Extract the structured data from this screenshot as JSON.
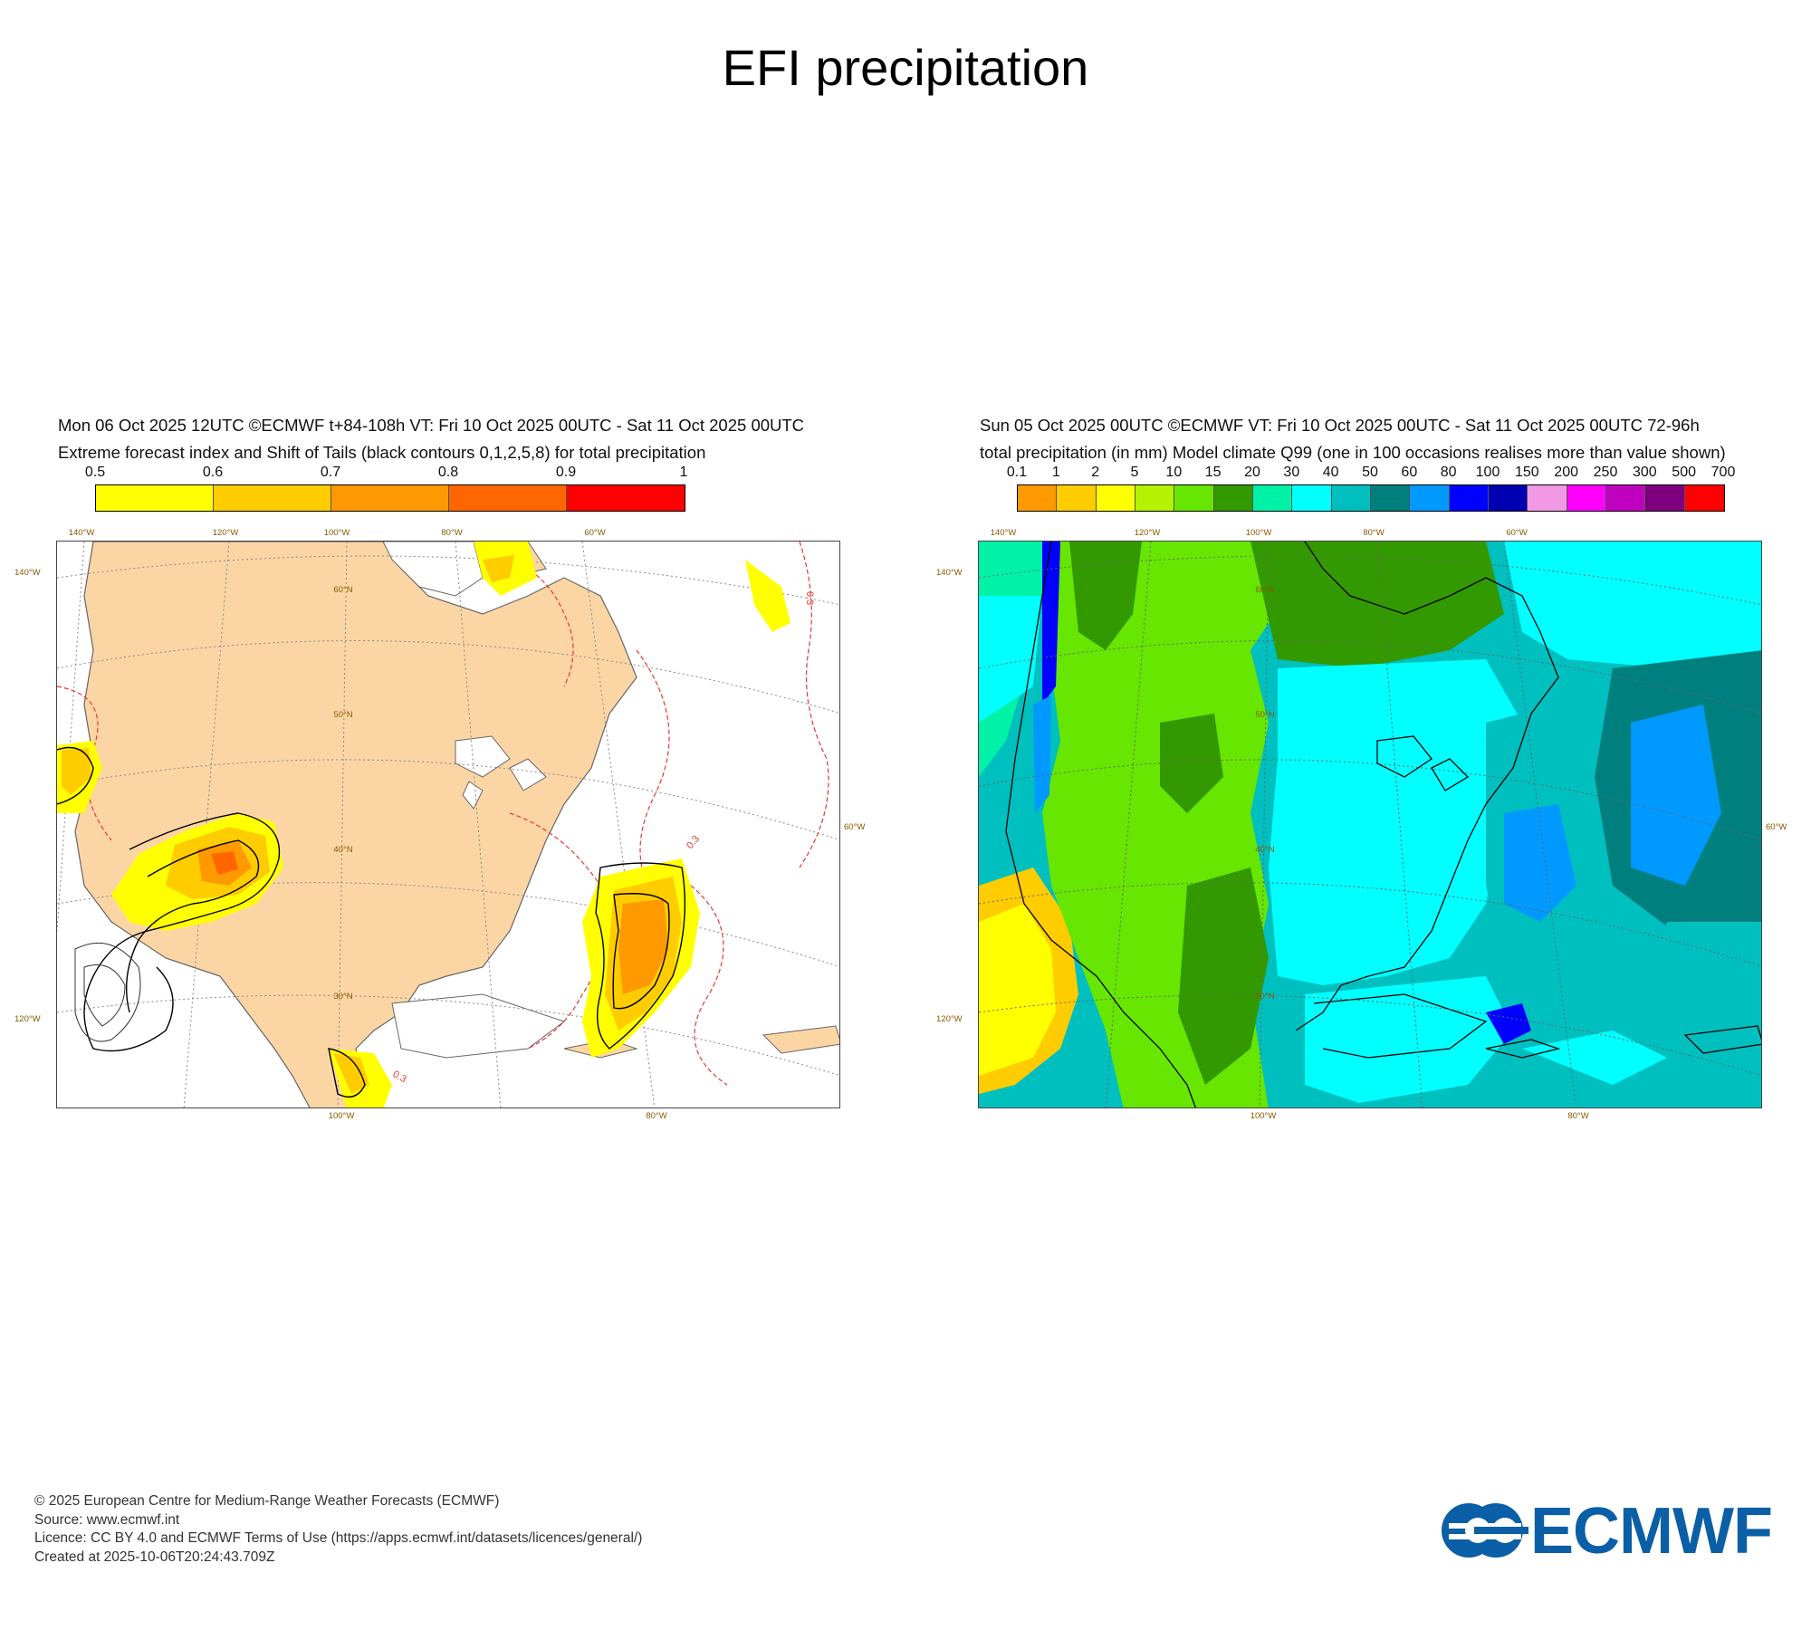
{
  "page": {
    "title": "EFI precipitation"
  },
  "left_panel": {
    "header_line1": "Mon 06 Oct 2025 12UTC ©ECMWF t+84-108h  VT: Fri 10 Oct 2025 00UTC - Sat 11 Oct 2025 00UTC",
    "header_line2": "Extreme forecast index and Shift of Tails (black contours 0,1,2,5,8) for total precipitation",
    "legend": {
      "labels": [
        "0.5",
        "0.6",
        "0.7",
        "0.8",
        "0.9",
        "1"
      ],
      "colors": [
        "#ffff00",
        "#ffcc00",
        "#ff9900",
        "#ff6600",
        "#ff0000"
      ]
    },
    "map": {
      "top_lon_labels": [
        "140°W",
        "120°W",
        "100°W",
        "80°W",
        "60°W"
      ],
      "bottom_lon_labels": [
        "100°W",
        "80°W"
      ],
      "left_lat_labels": [
        "140°W",
        "120°W"
      ],
      "right_labels": [
        "60°W"
      ],
      "lat_labels": [
        "60°N",
        "50°N",
        "40°N",
        "30°N"
      ],
      "contour_label": "0.3",
      "land_color": "#fcd5a5",
      "efi_colors": {
        "low": "#ffff00",
        "mid": "#ffcc00",
        "high": "#ff9900",
        "max": "#ff6600"
      }
    }
  },
  "right_panel": {
    "header_line1": "Sun 05 Oct 2025 00UTC ©ECMWF VT: Fri 10 Oct 2025 00UTC - Sat 11 Oct 2025 00UTC   72-96h",
    "header_line2": "total precipitation (in mm)  Model climate Q99 (one in 100 occasions realises more than value shown)",
    "legend": {
      "labels": [
        "0.1",
        "1",
        "2",
        "5",
        "10",
        "15",
        "20",
        "30",
        "40",
        "50",
        "60",
        "80",
        "100",
        "150",
        "200",
        "250",
        "300",
        "500",
        "700"
      ],
      "colors": [
        "#ff9900",
        "#ffcc00",
        "#ffff00",
        "#b3f200",
        "#66e600",
        "#339900",
        "#00f2a6",
        "#00ffff",
        "#00bfbf",
        "#007f7f",
        "#0099ff",
        "#0000ff",
        "#0000b3",
        "#f299e6",
        "#ff00ff",
        "#bf00bf",
        "#7f007f",
        "#ff0000"
      ]
    },
    "map": {
      "top_lon_labels": [
        "140°W",
        "120°W",
        "100°W",
        "80°W",
        "60°W"
      ],
      "bottom_lon_labels": [
        "100°W",
        "80°W"
      ],
      "left_lat_labels": [
        "140°W",
        "120°W"
      ],
      "right_labels": [
        "60°W"
      ],
      "lat_labels": [
        "60°N",
        "50°N",
        "40°N",
        "30°N"
      ]
    }
  },
  "footer": {
    "copyright": "© 2025 European Centre for Medium-Range Weather Forecasts (ECMWF)",
    "source": "Source: www.ecmwf.int",
    "licence": "Licence: CC BY 4.0 and ECMWF Terms of Use (https://apps.ecmwf.int/datasets/licences/general/)",
    "created": "Created at 2025-10-06T20:24:43.709Z"
  },
  "logo": {
    "text": "ECMWF",
    "color": "#0a5fa6"
  }
}
